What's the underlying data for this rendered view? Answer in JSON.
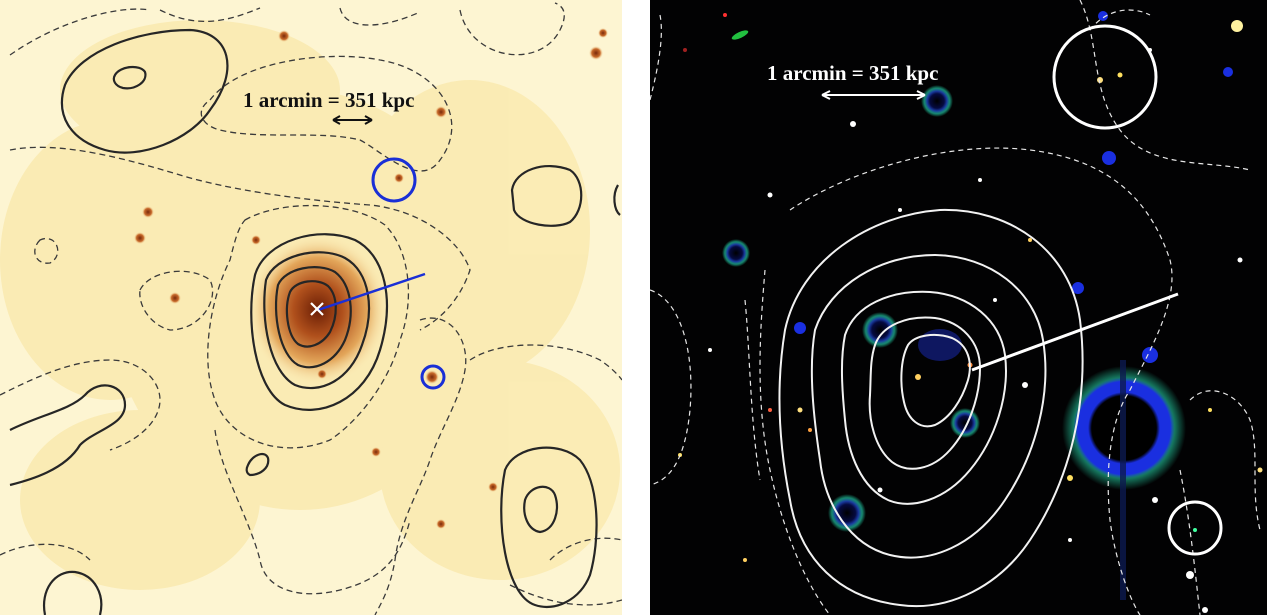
{
  "figure": {
    "left_panel": {
      "scale_label": "1 arcmin = 351 kpc",
      "colors": {
        "background": "#fdf3c8",
        "emission": "#c86a2a",
        "peak": "#7a2a0a",
        "contour": "#2a2a2a",
        "marker": "#1a2fd6"
      }
    },
    "right_panel": {
      "scale_label": "1 arcmin = 351 kpc",
      "colors": {
        "background": "#020203",
        "contour": "#f2f2f2",
        "halo": "#1a2fe0"
      }
    }
  }
}
